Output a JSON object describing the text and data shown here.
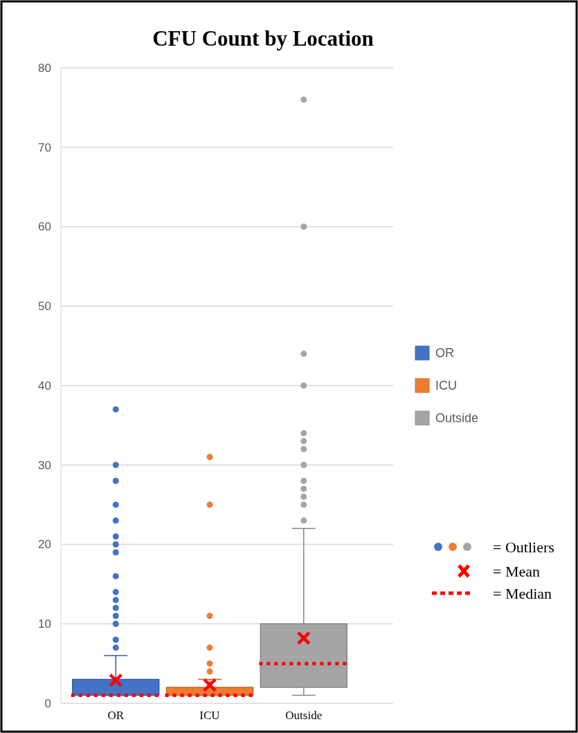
{
  "chart_data": {
    "type": "box",
    "title": "CFU Count by Location",
    "categories": [
      "OR",
      "ICU",
      "Outside"
    ],
    "series": [
      {
        "name": "OR",
        "color": "#4472c4",
        "boxes": [
          {
            "low": 1,
            "q1": 1,
            "median": 1,
            "q3": 3,
            "high": 6,
            "mean": 2.9,
            "outliers": [
              7,
              8,
              10,
              11,
              12,
              13,
              14,
              16,
              19,
              20,
              21,
              23,
              25,
              28,
              30,
              37
            ]
          },
          null,
          null
        ]
      },
      {
        "name": "ICU",
        "color": "#ed7d31",
        "boxes": [
          null,
          {
            "low": 1,
            "q1": 1,
            "median": 1,
            "q3": 2,
            "high": 3,
            "mean": 2.3,
            "outliers": [
              4,
              5,
              7,
              11,
              25,
              31
            ]
          },
          null
        ]
      },
      {
        "name": "Outside",
        "color": "#a5a5a5",
        "boxes": [
          null,
          null,
          {
            "low": 1,
            "q1": 2,
            "median": 5,
            "q3": 10,
            "high": 22,
            "mean": 8.2,
            "outliers": [
              23,
              25,
              26,
              27,
              28,
              30,
              32,
              33,
              34,
              40,
              44,
              60,
              76
            ]
          }
        ]
      }
    ],
    "ylim": [
      0,
      80
    ],
    "yticks": [
      0,
      10,
      20,
      30,
      40,
      50,
      60,
      70,
      80
    ],
    "grid": "y",
    "legend": "right",
    "annotations": [
      "= Outliers",
      "= Mean",
      "= Median"
    ]
  }
}
